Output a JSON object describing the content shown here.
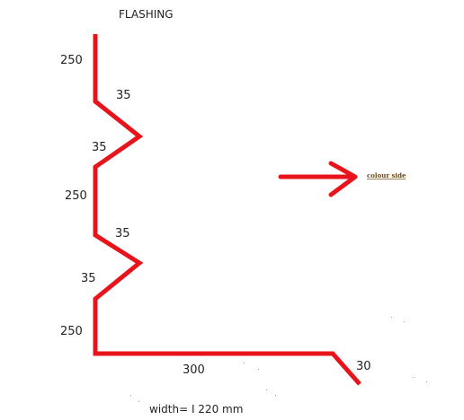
{
  "title": "FLASHING",
  "dimensions": {
    "top": "250",
    "bend1_upper": "35",
    "bend1_lower": "35",
    "middle": "250",
    "bend2_upper": "35",
    "bend2_lower": "35",
    "bottom": "250",
    "base": "300",
    "lip": "30"
  },
  "arrow_label": "colour side",
  "width_note": "width= I 220 mm",
  "colors": {
    "profile": "#e8141b",
    "arrow": "#e8141b",
    "text": "#222222",
    "arrow_label": "#6b4a12"
  }
}
